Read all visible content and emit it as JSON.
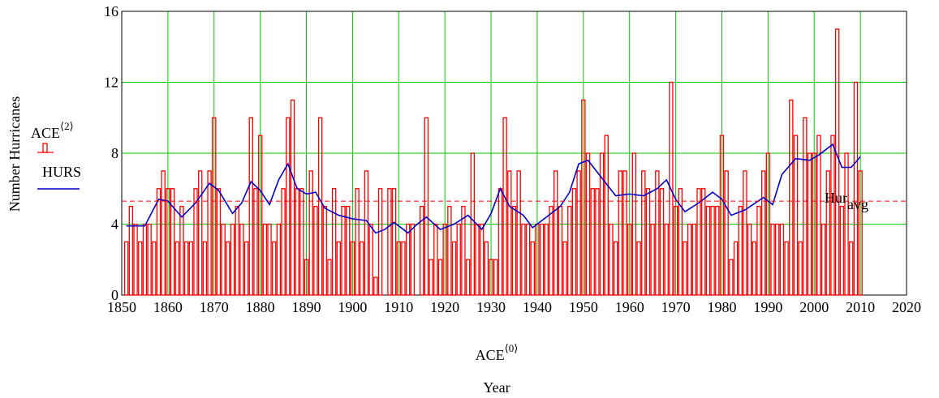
{
  "chart_data": {
    "type": "bar",
    "x": [
      1851,
      1852,
      1853,
      1854,
      1855,
      1856,
      1857,
      1858,
      1859,
      1860,
      1861,
      1862,
      1863,
      1864,
      1865,
      1866,
      1867,
      1868,
      1869,
      1870,
      1871,
      1872,
      1873,
      1874,
      1875,
      1876,
      1877,
      1878,
      1879,
      1880,
      1881,
      1882,
      1883,
      1884,
      1885,
      1886,
      1887,
      1888,
      1889,
      1890,
      1891,
      1892,
      1893,
      1894,
      1895,
      1896,
      1897,
      1898,
      1899,
      1900,
      1901,
      1902,
      1903,
      1904,
      1905,
      1906,
      1907,
      1908,
      1909,
      1910,
      1911,
      1912,
      1913,
      1914,
      1915,
      1916,
      1917,
      1918,
      1919,
      1920,
      1921,
      1922,
      1923,
      1924,
      1925,
      1926,
      1927,
      1928,
      1929,
      1930,
      1931,
      1932,
      1933,
      1934,
      1935,
      1936,
      1937,
      1938,
      1939,
      1940,
      1941,
      1942,
      1943,
      1944,
      1945,
      1946,
      1947,
      1948,
      1949,
      1950,
      1951,
      1952,
      1953,
      1954,
      1955,
      1956,
      1957,
      1958,
      1959,
      1960,
      1961,
      1962,
      1963,
      1964,
      1965,
      1966,
      1967,
      1968,
      1969,
      1970,
      1971,
      1972,
      1973,
      1974,
      1975,
      1976,
      1977,
      1978,
      1979,
      1980,
      1981,
      1982,
      1983,
      1984,
      1985,
      1986,
      1987,
      1988,
      1989,
      1990,
      1991,
      1992,
      1993,
      1994,
      1995,
      1996,
      1997,
      1998,
      1999,
      2000,
      2001,
      2002,
      2003,
      2004,
      2005,
      2006,
      2007,
      2008,
      2009,
      2010
    ],
    "series": [
      {
        "name": "ACE",
        "superscript": "⟨2⟩",
        "color": "#ff0000",
        "values": [
          3,
          5,
          4,
          3,
          4,
          4,
          3,
          6,
          7,
          6,
          6,
          3,
          5,
          3,
          3,
          6,
          7,
          3,
          7,
          10,
          6,
          4,
          3,
          4,
          5,
          4,
          3,
          10,
          6,
          9,
          4,
          4,
          3,
          4,
          6,
          10,
          11,
          6,
          6,
          2,
          7,
          5,
          10,
          5,
          2,
          6,
          3,
          5,
          5,
          3,
          6,
          3,
          7,
          4,
          1,
          6,
          0,
          6,
          6,
          3,
          3,
          4,
          4,
          0,
          5,
          10,
          2,
          4,
          2,
          4,
          5,
          3,
          4,
          5,
          2,
          8,
          4,
          4,
          3,
          2,
          2,
          6,
          10,
          7,
          5,
          7,
          4,
          4,
          3,
          4,
          4,
          4,
          5,
          7,
          5,
          3,
          5,
          6,
          7,
          11,
          8,
          6,
          6,
          8,
          9,
          4,
          3,
          7,
          7,
          4,
          8,
          3,
          7,
          6,
          4,
          7,
          6,
          4,
          12,
          5,
          6,
          3,
          4,
          4,
          6,
          6,
          5,
          5,
          5,
          9,
          7,
          2,
          3,
          5,
          7,
          4,
          3,
          5,
          7,
          8,
          4,
          4,
          4,
          3,
          11,
          9,
          3,
          10,
          8,
          8,
          9,
          4,
          7,
          9,
          15,
          5,
          8,
          3,
          12,
          7
        ]
      },
      {
        "name": "HURS",
        "type": "line",
        "color": "#0000cc",
        "x": [
          1851,
          1855,
          1858,
          1860,
          1863,
          1866,
          1869,
          1871,
          1874,
          1876,
          1878,
          1880,
          1882,
          1884,
          1886,
          1888,
          1890,
          1892,
          1894,
          1897,
          1900,
          1903,
          1905,
          1907,
          1909,
          1912,
          1914,
          1916,
          1919,
          1922,
          1925,
          1928,
          1930,
          1932,
          1934,
          1937,
          1939,
          1942,
          1945,
          1947,
          1949,
          1951,
          1954,
          1957,
          1960,
          1963,
          1966,
          1968,
          1970,
          1972,
          1975,
          1978,
          1980,
          1982,
          1985,
          1989,
          1991,
          1993,
          1996,
          1999,
          2001,
          2004,
          2006,
          2008,
          2010
        ],
        "values": [
          3.9,
          3.9,
          5.4,
          5.3,
          4.4,
          5.2,
          6.3,
          5.9,
          4.6,
          5.2,
          6.4,
          5.9,
          5.1,
          6.5,
          7.4,
          6.0,
          5.7,
          5.8,
          4.9,
          4.5,
          4.3,
          4.2,
          3.5,
          3.7,
          4.1,
          3.5,
          4.0,
          4.4,
          3.7,
          4.0,
          4.5,
          3.7,
          4.6,
          6.0,
          5.0,
          4.5,
          3.8,
          4.4,
          5.0,
          5.8,
          7.4,
          7.6,
          6.6,
          5.6,
          5.7,
          5.6,
          6.0,
          6.5,
          5.4,
          4.7,
          5.2,
          5.8,
          5.4,
          4.5,
          4.8,
          5.5,
          5.1,
          6.8,
          7.7,
          7.6,
          7.9,
          8.5,
          7.2,
          7.2,
          7.8
        ]
      }
    ],
    "average": {
      "label": "Hur",
      "subscript": "avg",
      "value": 5.3,
      "color": "#ff0000"
    },
    "xlabel": "ACE",
    "xlabel_superscript": "⟨0⟩",
    "xlabel2": "Year",
    "ylabel": "Number Hurricanes",
    "xlim": [
      1850,
      2020
    ],
    "xticks": [
      1850,
      1860,
      1870,
      1880,
      1890,
      1900,
      1910,
      1920,
      1930,
      1940,
      1950,
      1960,
      1970,
      1980,
      1990,
      2000,
      2010,
      2020
    ],
    "ylim": [
      0,
      16
    ],
    "yticks": [
      0,
      4,
      8,
      12,
      16
    ],
    "grid": true,
    "grid_color": "#00cc00"
  }
}
